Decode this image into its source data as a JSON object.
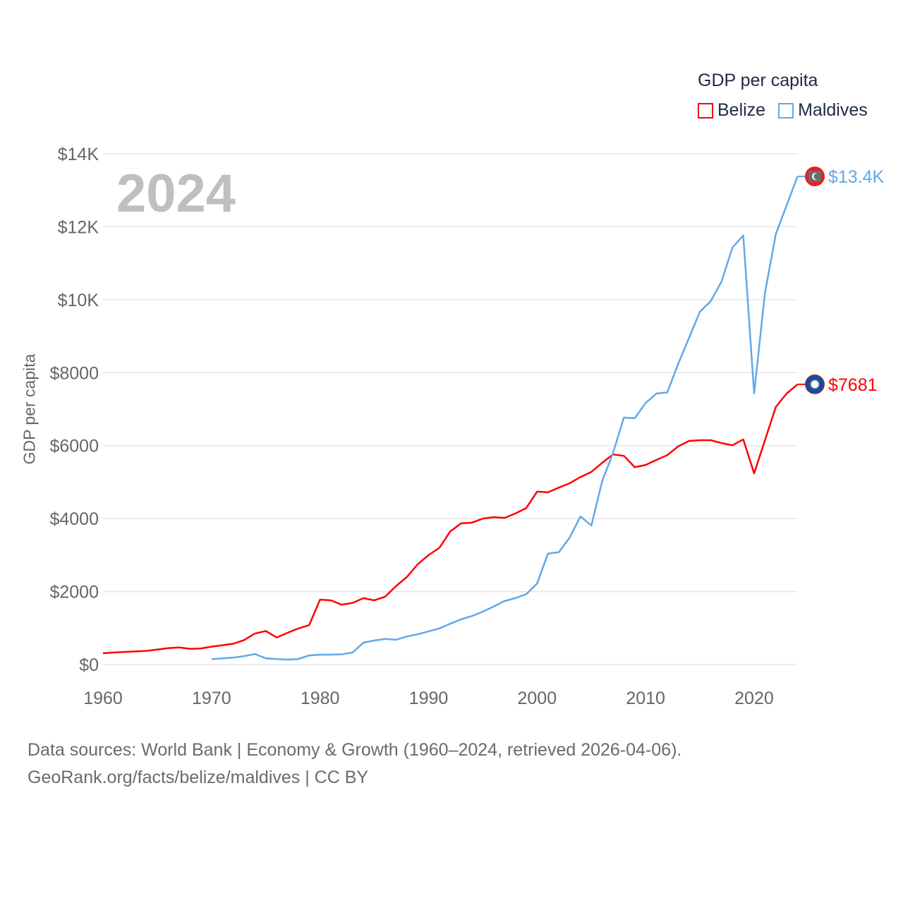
{
  "legend": {
    "title": "GDP per capita",
    "items": [
      {
        "label": "Belize",
        "color": "#ff0000"
      },
      {
        "label": "Maldives",
        "color": "#62a8e8"
      }
    ]
  },
  "footer": {
    "line1": "Data sources: World Bank | Economy & Growth (1960–2024, retrieved 2026-04-06).",
    "line2": "GeoRank.org/facts/belize/maldives | CC BY"
  },
  "chart_data": {
    "type": "line",
    "title": "GDP per capita",
    "year_label": "2024",
    "xlabel": "",
    "ylabel": "GDP per capita",
    "xlim": [
      1960,
      2024
    ],
    "ylim": [
      0,
      14000
    ],
    "grid": true,
    "legend_position": "top-right",
    "x_ticks": [
      1960,
      1970,
      1980,
      1990,
      2000,
      2010,
      2020
    ],
    "x_tick_labels": [
      "1960",
      "1970",
      "1980",
      "1990",
      "2000",
      "2010",
      "2020"
    ],
    "y_ticks": [
      0,
      2000,
      4000,
      6000,
      8000,
      10000,
      12000,
      14000
    ],
    "y_tick_labels": [
      "$0",
      "$2000",
      "$4000",
      "$6000",
      "$8000",
      "$10K",
      "$12K",
      "$14K"
    ],
    "series": [
      {
        "name": "Belize",
        "color": "#ff0000",
        "start_year": 1960,
        "end_label": "$7681",
        "flag": "belize-flag",
        "values": [
          310,
          330,
          345,
          360,
          375,
          410,
          450,
          470,
          430,
          440,
          490,
          530,
          570,
          670,
          850,
          920,
          740,
          870,
          990,
          1080,
          1780,
          1760,
          1640,
          1690,
          1820,
          1760,
          1860,
          2150,
          2400,
          2750,
          3000,
          3200,
          3650,
          3870,
          3890,
          4000,
          4040,
          4020,
          4140,
          4290,
          4740,
          4720,
          4850,
          4970,
          5140,
          5280,
          5530,
          5760,
          5720,
          5410,
          5470,
          5610,
          5740,
          5980,
          6130,
          6150,
          6150,
          6070,
          6010,
          6170,
          5240,
          6150,
          7060,
          7430,
          7681
        ]
      },
      {
        "name": "Maldives",
        "color": "#62a8e8",
        "start_year": 1970,
        "end_label": "$13.4K",
        "flag": "maldives-flag",
        "values": [
          150,
          170,
          190,
          230,
          290,
          170,
          150,
          135,
          150,
          250,
          270,
          270,
          280,
          330,
          600,
          660,
          700,
          680,
          770,
          830,
          910,
          990,
          1120,
          1240,
          1330,
          1450,
          1590,
          1740,
          1820,
          1930,
          2220,
          3040,
          3080,
          3480,
          4060,
          3810,
          5030,
          5800,
          6770,
          6750,
          7170,
          7430,
          7460,
          8240,
          8950,
          9670,
          9960,
          10500,
          11430,
          11760,
          7430,
          10190,
          11800,
          12590,
          13380
        ]
      }
    ]
  }
}
